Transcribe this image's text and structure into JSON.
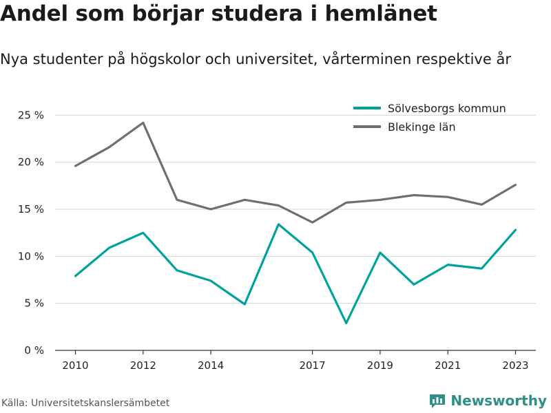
{
  "title": "Andel som börjar studera i hemlänet",
  "subtitle": "Nya studenter på högskolor och universitet, vårterminen respektive år",
  "source": "Källa: Universitetskanslersämbetet",
  "brand": "Newsworthy",
  "colors": {
    "solvesborg": "#00a39a",
    "blekinge": "#6e6e73",
    "grid": "#d4d4d4",
    "axis": "#333333",
    "brand": "#2f8f85"
  },
  "chart_data": {
    "type": "line",
    "title": "Andel som börjar studera i hemlänet",
    "subtitle": "Nya studenter på högskolor och universitet, vårterminen respektive år",
    "x": [
      2010,
      2011,
      2012,
      2013,
      2014,
      2015,
      2016,
      2017,
      2018,
      2019,
      2020,
      2021,
      2022,
      2023
    ],
    "xticks": [
      2010,
      2012,
      2014,
      2017,
      2019,
      2021,
      2023
    ],
    "yticks": [
      0,
      5,
      10,
      15,
      20,
      25
    ],
    "ytick_suffix": " %",
    "ylim": [
      0,
      27
    ],
    "xlim": [
      2009.4,
      2023.6
    ],
    "grid": true,
    "legend_position": "top-right",
    "series": [
      {
        "name": "Sölvesborgs kommun",
        "color": "#00a39a",
        "values": [
          7.9,
          10.9,
          12.5,
          8.5,
          7.4,
          4.9,
          13.4,
          10.4,
          2.9,
          10.4,
          7.0,
          9.1,
          8.7,
          12.8
        ]
      },
      {
        "name": "Blekinge län",
        "color": "#6e6e73",
        "values": [
          19.6,
          21.6,
          24.2,
          16.0,
          15.0,
          16.0,
          15.4,
          13.6,
          15.7,
          16.0,
          16.5,
          16.3,
          15.5,
          17.6
        ]
      }
    ]
  }
}
